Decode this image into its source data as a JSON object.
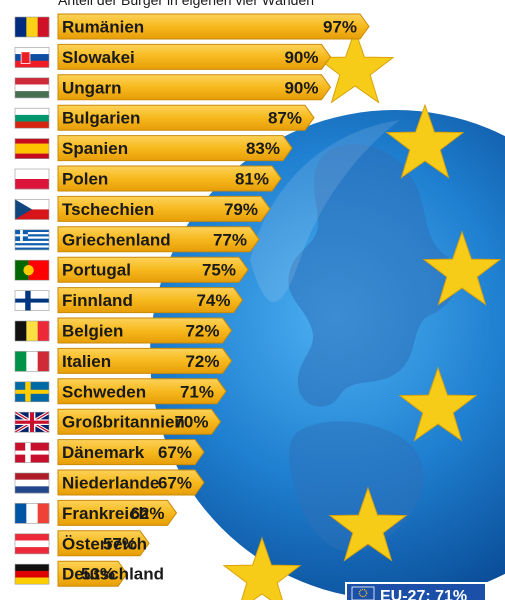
{
  "subtitle": "Anteil der Bürger in eigenen vier Wänden",
  "eu_badge": "EU-27: 71%",
  "colors": {
    "bar": "#f7b91d",
    "bar_edge": "#c98a06",
    "globe": "#1f7fd0",
    "star": "#f6cc19",
    "flag_bg": "#1b4fa8"
  },
  "chart_data": {
    "type": "bar",
    "orientation": "horizontal",
    "categories": [
      "Rumänien",
      "Slowakei",
      "Ungarn",
      "Bulgarien",
      "Spanien",
      "Polen",
      "Tschechien",
      "Griechenland",
      "Portugal",
      "Finnland",
      "Belgien",
      "Italien",
      "Schweden",
      "Großbritannien",
      "Dänemark",
      "Niederlande",
      "Frankreich",
      "Österreich",
      "Deutschland"
    ],
    "values": [
      97,
      90,
      90,
      87,
      83,
      81,
      79,
      77,
      75,
      74,
      72,
      72,
      71,
      70,
      67,
      67,
      62,
      57,
      53
    ],
    "value_labels": [
      "97%",
      "90%",
      "90%",
      "87%",
      "83%",
      "81%",
      "79%",
      "77%",
      "75%",
      "74%",
      "72%",
      "72%",
      "71%",
      "70%",
      "67%",
      "67%",
      "62%",
      "57%",
      "53%"
    ],
    "unit": "%",
    "flags": [
      "flag-romania",
      "flag-slovakia",
      "flag-hungary",
      "flag-bulgaria",
      "flag-spain",
      "flag-poland",
      "flag-czechia",
      "flag-greece",
      "flag-portugal",
      "flag-finland",
      "flag-belgium",
      "flag-italy",
      "flag-sweden",
      "flag-united-kingdom",
      "flag-denmark",
      "flag-netherlands",
      "flag-france",
      "flag-austria",
      "flag-germany"
    ]
  }
}
